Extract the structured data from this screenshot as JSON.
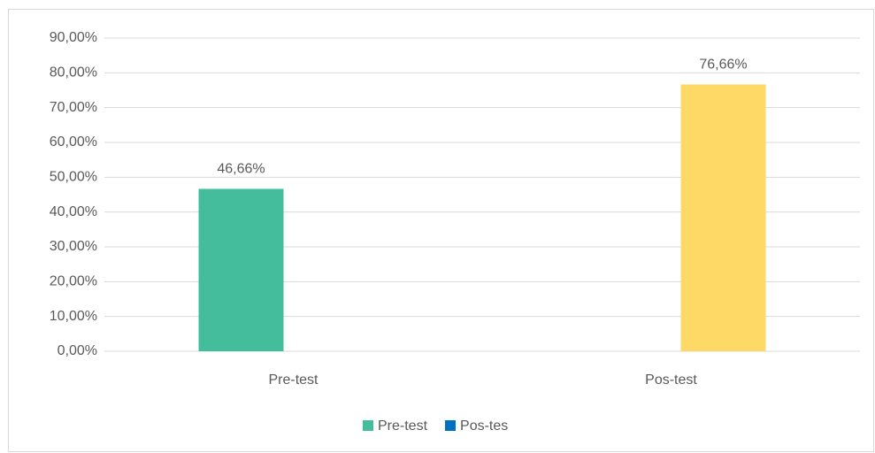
{
  "chart_data": {
    "type": "bar",
    "categories": [
      "Pre-test",
      "Pos-test"
    ],
    "series": [
      {
        "name": "Pre-test",
        "color": "#43bd9c",
        "colors": [
          "#43bd9c",
          null
        ],
        "values": [
          46.66,
          null
        ],
        "value_labels": [
          "46,66%",
          null
        ]
      },
      {
        "name": "Pos-tes",
        "color": "#0070c0",
        "colors": [
          null,
          "#ffd966"
        ],
        "values": [
          null,
          76.66
        ],
        "value_labels": [
          null,
          "76,66%"
        ]
      }
    ],
    "ylim": [
      0,
      90
    ],
    "yticks": [
      {
        "value": 0,
        "label": "0,00%"
      },
      {
        "value": 10,
        "label": "10,00%"
      },
      {
        "value": 20,
        "label": "20,00%"
      },
      {
        "value": 30,
        "label": "30,00%"
      },
      {
        "value": 40,
        "label": "40,00%"
      },
      {
        "value": 50,
        "label": "50,00%"
      },
      {
        "value": 60,
        "label": "60,00%"
      },
      {
        "value": 70,
        "label": "70,00%"
      },
      {
        "value": 80,
        "label": "80,00%"
      },
      {
        "value": 90,
        "label": "90,00%"
      }
    ],
    "grid": true,
    "legend": "bottom"
  }
}
